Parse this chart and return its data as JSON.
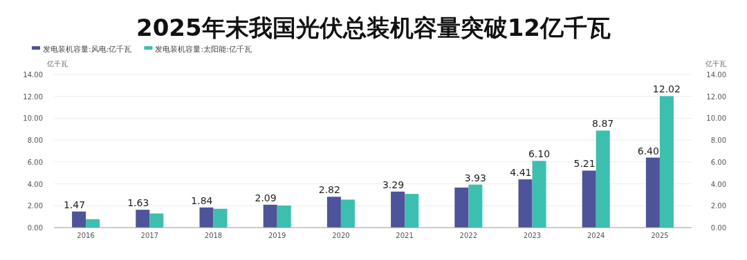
{
  "chart_data": {
    "type": "bar",
    "title": "2025年末我国光伏总装机容量突破12亿千瓦",
    "categories": [
      "2016",
      "2017",
      "2018",
      "2019",
      "2020",
      "2021",
      "2022",
      "2023",
      "2024",
      "2025"
    ],
    "series": [
      {
        "name": "发电装机容量:风电:亿千瓦",
        "color": "#4e5499",
        "values": [
          1.47,
          1.63,
          1.84,
          2.09,
          2.82,
          3.29,
          3.66,
          4.41,
          5.21,
          6.4
        ],
        "value_labels": [
          "1.47",
          "1.63",
          "1.84",
          "2.09",
          "2.82",
          "3.29",
          null,
          "4.41",
          "5.21",
          "6.40"
        ]
      },
      {
        "name": "发电装机容量:太阳能:亿千瓦",
        "color": "#3dbfb0",
        "values": [
          0.77,
          1.29,
          1.72,
          2.02,
          2.56,
          3.08,
          3.93,
          6.1,
          8.87,
          12.02
        ],
        "value_labels": [
          null,
          null,
          null,
          null,
          null,
          null,
          "3.93",
          "6.10",
          "8.87",
          "12.02"
        ]
      }
    ],
    "ylabel": "亿千瓦",
    "y2label": "亿千瓦",
    "ylim": [
      0,
      14
    ],
    "yticks": [
      {
        "value": 0,
        "label": "0.00"
      },
      {
        "value": 2,
        "label": "2.00"
      },
      {
        "value": 4,
        "label": "4.00"
      },
      {
        "value": 6,
        "label": "6.00"
      },
      {
        "value": 8,
        "label": "8.00"
      },
      {
        "value": 10,
        "label": "10.00"
      },
      {
        "value": 12,
        "label": "12.00"
      },
      {
        "value": 14,
        "label": "14.00"
      }
    ],
    "y2lim": [
      0,
      14
    ],
    "y2ticks": [
      {
        "value": 0,
        "label": "0.00"
      },
      {
        "value": 2,
        "label": "2.00"
      },
      {
        "value": 4,
        "label": "4.00"
      },
      {
        "value": 6,
        "label": "6.00"
      },
      {
        "value": 8,
        "label": "8.00"
      },
      {
        "value": 10,
        "label": "10.00"
      },
      {
        "value": 12,
        "label": "12.00"
      },
      {
        "value": 14,
        "label": "14.00"
      }
    ],
    "grid": "y",
    "legend": "top left"
  }
}
